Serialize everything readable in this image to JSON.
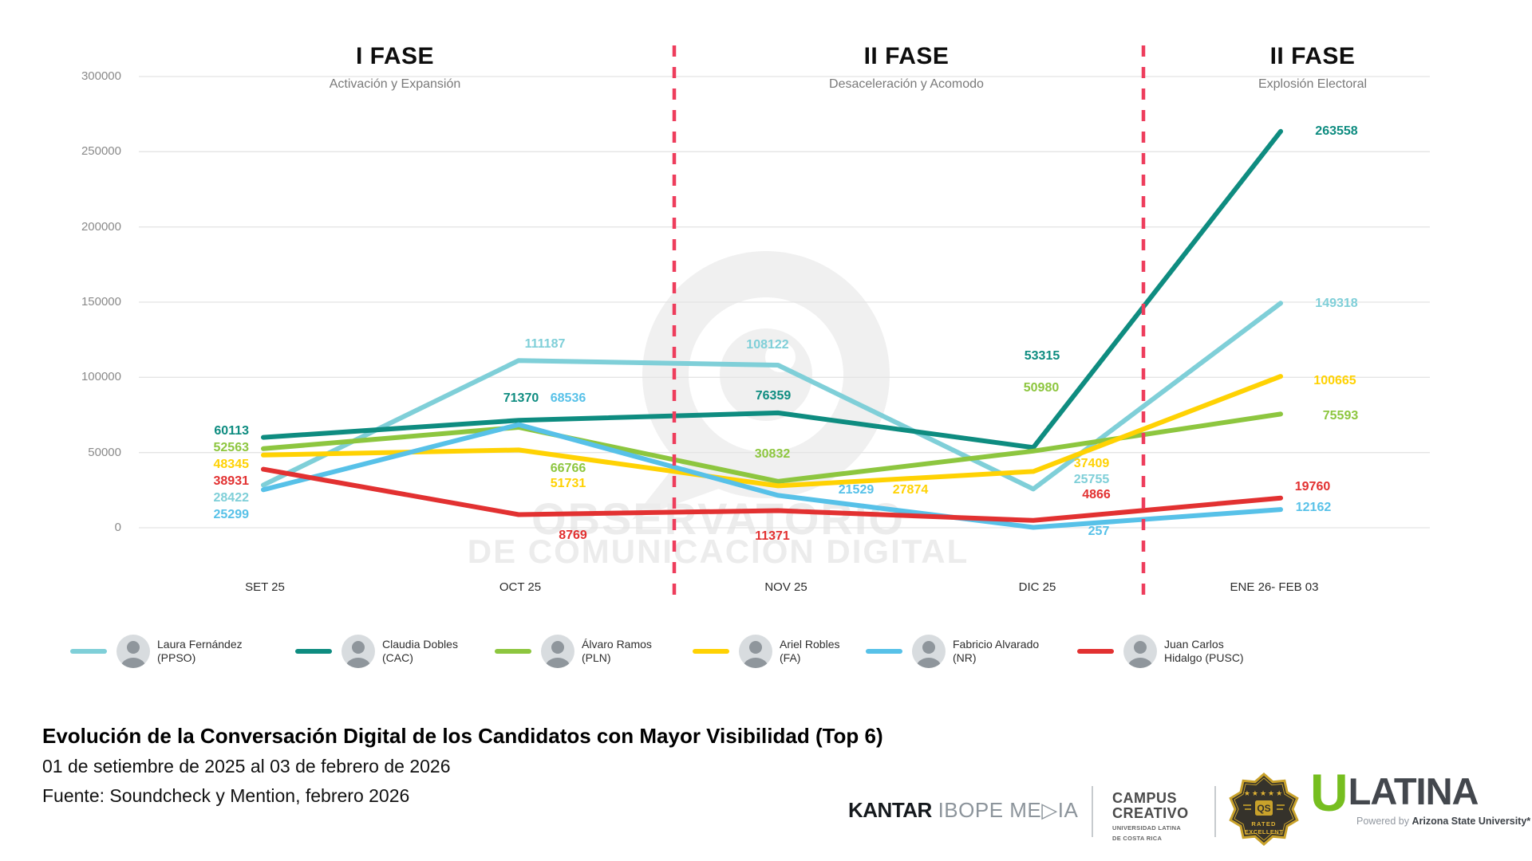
{
  "watermark": {
    "line1": "OBSERVATORIO",
    "line2": "DE COMUNICACIÓN DIGITAL"
  },
  "chart_data": {
    "type": "line",
    "title": "Evolución de la Conversación Digital de los Candidatos con Mayor Visibilidad (Top 6)",
    "x_categories": [
      "SET 25",
      "OCT 25",
      "NOV 25",
      "DIC 25",
      "ENE 26- FEB 03"
    ],
    "yticks": [
      0,
      50000,
      100000,
      150000,
      200000,
      250000,
      300000
    ],
    "ylim": [
      0,
      300000
    ],
    "grid": "horizontal",
    "legend_position": "bottom",
    "divider_color": "#EE3D5C",
    "phases": [
      {
        "label": "I FASE",
        "subtitle": "Activación y Expansión"
      },
      {
        "label": "II FASE",
        "subtitle": "Desaceleración y Acomodo"
      },
      {
        "label": "II FASE",
        "subtitle": "Explosión Electoral"
      }
    ],
    "series": [
      {
        "name": "Laura Fernández (PPSO)",
        "key": "PPSO",
        "color": "#7FCFD8",
        "values": [
          28422,
          111187,
          108122,
          25755,
          149318
        ]
      },
      {
        "name": "Claudia Dobles (CAC)",
        "key": "CAC",
        "color": "#0E8C80",
        "values": [
          60113,
          71370,
          76359,
          53315,
          263558
        ]
      },
      {
        "name": "Álvaro Ramos (PLN)",
        "key": "PLN",
        "color": "#8DC63F",
        "values": [
          52563,
          66766,
          30832,
          50980,
          75593
        ]
      },
      {
        "name": "Ariel Robles (FA)",
        "key": "FA",
        "color": "#FFD203",
        "values": [
          48345,
          51731,
          27874,
          37409,
          100665
        ]
      },
      {
        "name": "Fabricio Alvarado (NR)",
        "key": "NR",
        "color": "#57C1E8",
        "values": [
          25299,
          68536,
          21529,
          257,
          12162
        ]
      },
      {
        "name": "Juan Carlos Hidalgo (PUSC)",
        "key": "PUSC",
        "color": "#E23131",
        "values": [
          38931,
          8769,
          11371,
          4866,
          19760
        ]
      }
    ]
  },
  "legend": {
    "items": [
      {
        "line1": "Laura Fernández",
        "line2": "(PPSO)"
      },
      {
        "line1": "Claudia Dobles",
        "line2": "(CAC)"
      },
      {
        "line1": "Álvaro Ramos",
        "line2": "(PLN)"
      },
      {
        "line1": "Ariel Robles",
        "line2": "(FA)"
      },
      {
        "line1": "Fabricio Alvarado",
        "line2": "(NR)"
      },
      {
        "line1": "Juan Carlos",
        "line2": "Hidalgo (PUSC)"
      }
    ]
  },
  "footer": {
    "title": "Evolución de la Conversación Digital de los Candidatos con Mayor Visibilidad (Top 6)",
    "subtitle": "01 de setiembre de 2025 al 03 de febrero de 2026",
    "source": "Fuente: Soundcheck y Mention, febrero 2026"
  },
  "logos": {
    "kantar": {
      "part1": "KANTAR",
      "part2": " IBOPE ME",
      "play": "▷",
      "part3": "IA"
    },
    "campus": {
      "line1": "CAMPUS",
      "line2": "CREATIVO",
      "line3": "UNIVERSIDAD LATINA",
      "line4": "DE COSTA RICA"
    },
    "qs_badge": {
      "stars": "★★★★★",
      "qs": "QS",
      "rated": "RATED",
      "excellent": "EXCELLENT"
    },
    "ulatina": {
      "u": "U",
      "latina": "LATINA",
      "powered_prefix": "Powered by ",
      "powered_bold": "Arizona State University*"
    }
  }
}
